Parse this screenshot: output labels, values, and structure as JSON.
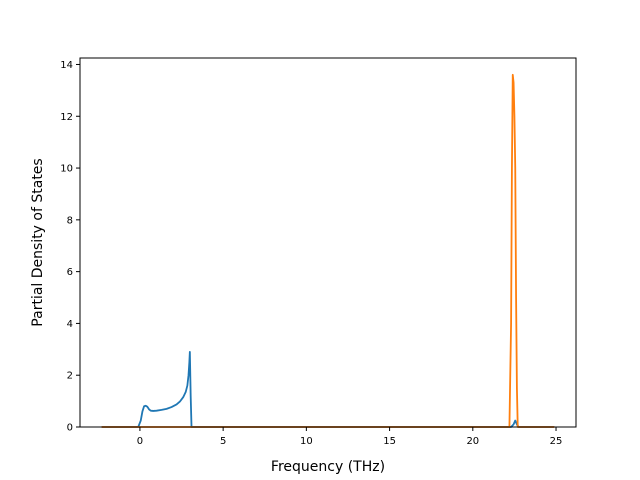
{
  "chart_data": {
    "type": "line",
    "xlabel": "Frequency (THz)",
    "ylabel": "Partial Density of States",
    "xlim": [
      -3.6,
      26.2
    ],
    "ylim": [
      0,
      14.25
    ],
    "xticks": [
      0,
      5,
      10,
      15,
      20,
      25
    ],
    "yticks": [
      0,
      2,
      4,
      6,
      8,
      10,
      12,
      14
    ],
    "grid": false,
    "legend": "none",
    "series": [
      {
        "color": "#1f77b4",
        "points": [
          [
            -2.3,
            0
          ],
          [
            -0.1,
            0
          ],
          [
            0.05,
            0.25
          ],
          [
            0.15,
            0.6
          ],
          [
            0.25,
            0.8
          ],
          [
            0.35,
            0.82
          ],
          [
            0.45,
            0.78
          ],
          [
            0.55,
            0.68
          ],
          [
            0.65,
            0.63
          ],
          [
            0.8,
            0.62
          ],
          [
            1.0,
            0.63
          ],
          [
            1.3,
            0.66
          ],
          [
            1.6,
            0.7
          ],
          [
            1.9,
            0.77
          ],
          [
            2.2,
            0.87
          ],
          [
            2.4,
            0.98
          ],
          [
            2.6,
            1.15
          ],
          [
            2.75,
            1.35
          ],
          [
            2.85,
            1.6
          ],
          [
            2.92,
            2.0
          ],
          [
            2.97,
            2.5
          ],
          [
            3.0,
            2.9
          ],
          [
            3.05,
            1.2
          ],
          [
            3.1,
            0
          ],
          [
            22.3,
            0
          ],
          [
            22.45,
            0.1
          ],
          [
            22.55,
            0.25
          ],
          [
            22.65,
            0.1
          ],
          [
            22.75,
            0
          ],
          [
            24.9,
            0
          ]
        ]
      },
      {
        "color": "#ff7f0e",
        "points": [
          [
            -2.3,
            0
          ],
          [
            22.2,
            0
          ],
          [
            22.3,
            4.0
          ],
          [
            22.35,
            10.0
          ],
          [
            22.4,
            13.6
          ],
          [
            22.45,
            13.3
          ],
          [
            22.5,
            12.0
          ],
          [
            22.55,
            10.0
          ],
          [
            22.6,
            5.0
          ],
          [
            22.65,
            1.5
          ],
          [
            22.7,
            0
          ],
          [
            24.9,
            0
          ]
        ]
      }
    ]
  }
}
